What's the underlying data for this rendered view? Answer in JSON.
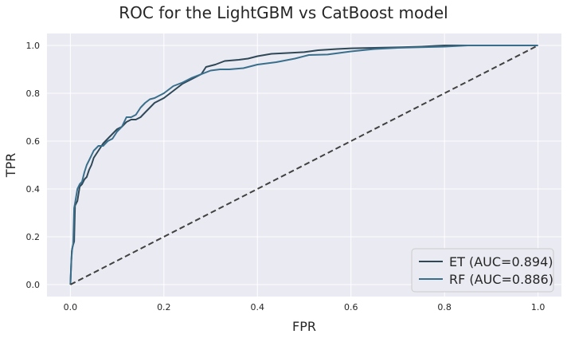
{
  "chart_data": {
    "type": "line",
    "title": "ROC for the LightGBM vs CatBoost model",
    "xlabel": "FPR",
    "ylabel": "TPR",
    "xlim": [
      -0.05,
      1.05
    ],
    "ylim": [
      -0.05,
      1.05
    ],
    "xticks": [
      "0.0",
      "0.2",
      "0.4",
      "0.6",
      "0.8",
      "1.0"
    ],
    "yticks": [
      "0.0",
      "0.2",
      "0.4",
      "0.6",
      "0.8",
      "1.0"
    ],
    "grid": true,
    "legend_position": "bottom-right",
    "series": [
      {
        "name": "ET (AUC=0.894)",
        "color": "#2f4858",
        "x": [
          0,
          0.003,
          0.005,
          0.008,
          0.01,
          0.015,
          0.02,
          0.025,
          0.03,
          0.035,
          0.04,
          0.045,
          0.05,
          0.06,
          0.07,
          0.08,
          0.09,
          0.1,
          0.11,
          0.12,
          0.13,
          0.14,
          0.15,
          0.16,
          0.17,
          0.18,
          0.19,
          0.2,
          0.22,
          0.24,
          0.26,
          0.28,
          0.29,
          0.31,
          0.33,
          0.36,
          0.38,
          0.4,
          0.43,
          0.46,
          0.5,
          0.53,
          0.57,
          0.6,
          0.65,
          0.7,
          0.75,
          0.8,
          0.85,
          0.9,
          1.0
        ],
        "y": [
          0,
          0.14,
          0.16,
          0.18,
          0.33,
          0.35,
          0.41,
          0.42,
          0.44,
          0.45,
          0.48,
          0.5,
          0.53,
          0.56,
          0.59,
          0.61,
          0.63,
          0.65,
          0.66,
          0.68,
          0.69,
          0.69,
          0.7,
          0.72,
          0.74,
          0.76,
          0.77,
          0.78,
          0.81,
          0.84,
          0.86,
          0.88,
          0.91,
          0.92,
          0.935,
          0.94,
          0.945,
          0.955,
          0.965,
          0.968,
          0.972,
          0.98,
          0.985,
          0.988,
          0.99,
          0.992,
          0.995,
          1.0,
          1.0,
          1.0,
          1.0
        ]
      },
      {
        "name": "RF (AUC=0.886)",
        "color": "#3a6f8c",
        "x": [
          0,
          0.002,
          0.004,
          0.006,
          0.008,
          0.01,
          0.015,
          0.02,
          0.025,
          0.03,
          0.035,
          0.04,
          0.045,
          0.05,
          0.06,
          0.07,
          0.08,
          0.09,
          0.1,
          0.11,
          0.12,
          0.13,
          0.14,
          0.15,
          0.16,
          0.17,
          0.18,
          0.19,
          0.2,
          0.22,
          0.24,
          0.26,
          0.28,
          0.3,
          0.32,
          0.34,
          0.37,
          0.4,
          0.44,
          0.48,
          0.51,
          0.55,
          0.6,
          0.65,
          0.7,
          0.8,
          0.85,
          0.9,
          1.0
        ],
        "y": [
          0,
          0.1,
          0.15,
          0.17,
          0.32,
          0.34,
          0.4,
          0.42,
          0.43,
          0.47,
          0.5,
          0.52,
          0.54,
          0.56,
          0.58,
          0.58,
          0.6,
          0.61,
          0.64,
          0.66,
          0.7,
          0.7,
          0.71,
          0.74,
          0.76,
          0.775,
          0.78,
          0.79,
          0.8,
          0.83,
          0.845,
          0.865,
          0.88,
          0.895,
          0.9,
          0.9,
          0.905,
          0.92,
          0.93,
          0.945,
          0.96,
          0.962,
          0.975,
          0.985,
          0.99,
          0.995,
          1.0,
          1.0,
          1.0
        ]
      },
      {
        "name": "",
        "color": "#404040",
        "dashed": true,
        "x": [
          0,
          1
        ],
        "y": [
          0,
          1
        ]
      }
    ]
  }
}
